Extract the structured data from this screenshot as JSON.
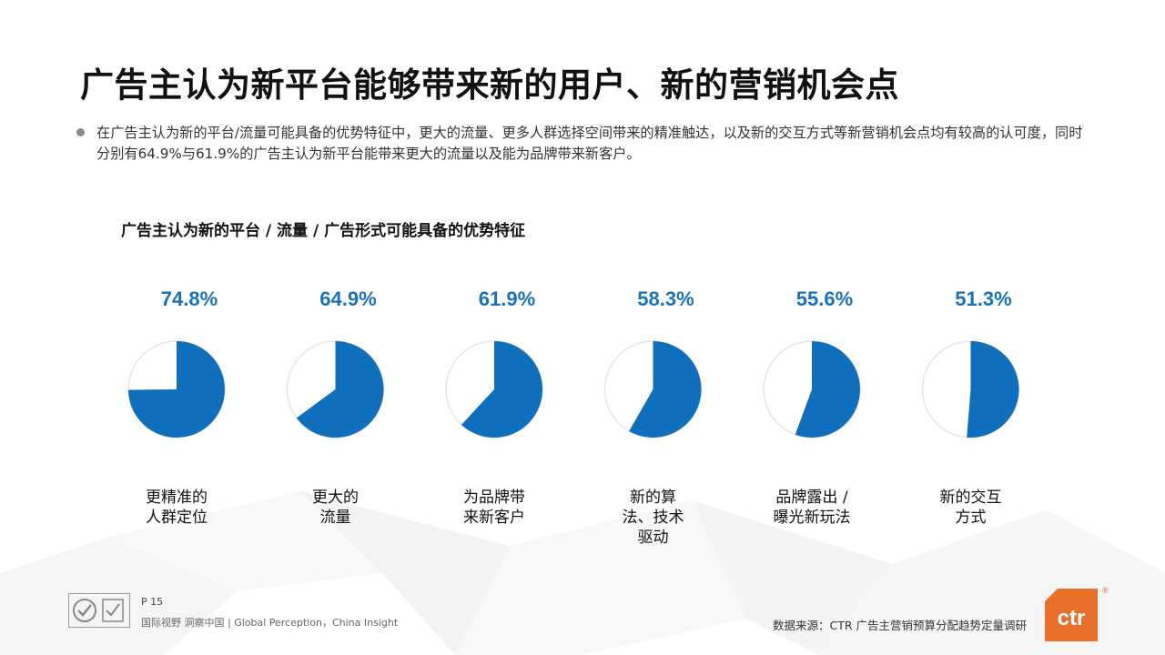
{
  "slide": {
    "title": "广告主认为新平台能够带来新的用户、新的营销机会点",
    "description": "在广告主认为新的平台/流量可能具备的优势特征中，更大的流量、更多人群选择空间带来的精准触达，以及新的交互方式等新营销机会点均有较高的认可度，同时分别有64.9%与61.9%的广告主认为新平台能带来更大的流量以及能为品牌带来新客户。",
    "chart_title": "广告主认为新的平台 / 流量 / 广告形式可能具备的优势特征"
  },
  "chart_data": {
    "type": "pie",
    "title": "广告主认为新的平台 / 流量 / 广告形式可能具备的优势特征",
    "unit": "%",
    "items": [
      {
        "label_lines": [
          "更精准的",
          "人群定位"
        ],
        "value": 74.8,
        "display": "74.8%"
      },
      {
        "label_lines": [
          "更大的",
          "流量"
        ],
        "value": 64.9,
        "display": "64.9%"
      },
      {
        "label_lines": [
          "为品牌带",
          "来新客户"
        ],
        "value": 61.9,
        "display": "61.9%"
      },
      {
        "label_lines": [
          "新的算",
          "法、技术",
          "驱动"
        ],
        "value": 58.3,
        "display": "58.3%"
      },
      {
        "label_lines": [
          "品牌露出 /",
          "曝光新玩法"
        ],
        "value": 55.6,
        "display": "55.6%"
      },
      {
        "label_lines": [
          "新的交互",
          "方式"
        ],
        "value": 51.3,
        "display": "51.3%"
      }
    ]
  },
  "colors": {
    "fill": "#0f6fbd",
    "remainder": "#ffffff",
    "remainder_edge": "#e6e6e6",
    "percent_text": "#1a72ba",
    "brand_orange": "#e8702a"
  },
  "footer": {
    "page": "P 15",
    "slogan": "国际视野  洞察中国 |  Global Perception，China Insight",
    "source": "数据来源：CTR 广告主营销预算分配趋势定量调研",
    "logo_text": "ctr",
    "registered_mark": "®"
  }
}
